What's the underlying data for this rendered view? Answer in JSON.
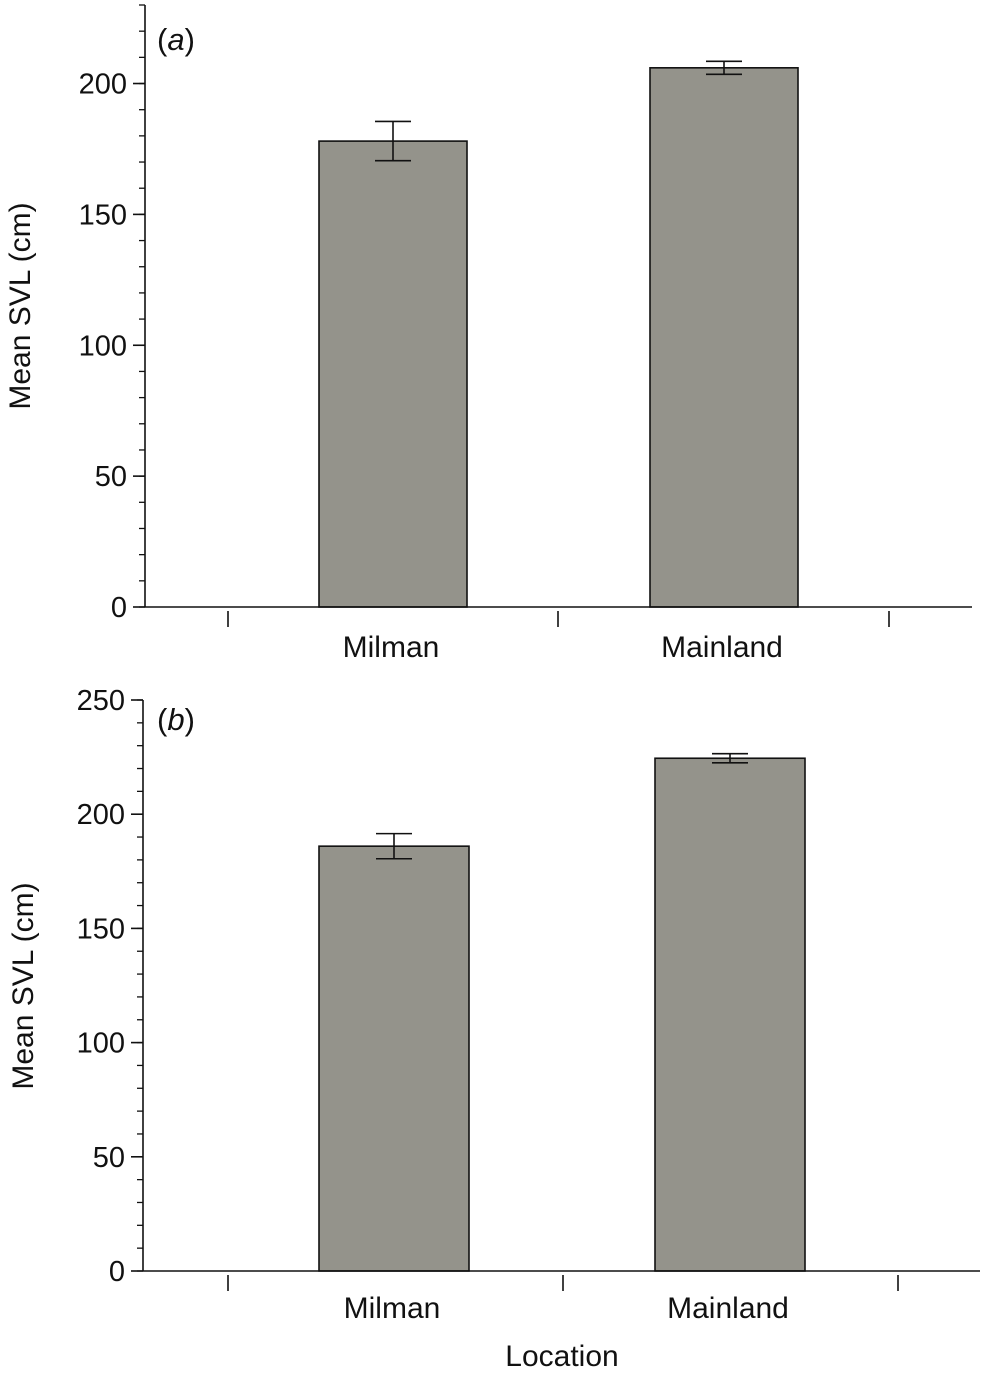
{
  "figure": {
    "xlabel": "Location",
    "colors": {
      "bar_fill": "#94938b",
      "stroke": "#111111",
      "background": "#ffffff"
    }
  },
  "chart_data": [
    {
      "type": "bar",
      "panel_label": "(a)",
      "panel_letter": "a",
      "categories": [
        "Milman",
        "Mainland"
      ],
      "values": [
        178,
        206
      ],
      "error": [
        7.5,
        2.5
      ],
      "ylabel": "Mean SVL (cm)",
      "xlabel": "",
      "ylim": [
        0,
        230
      ],
      "yticks": [
        0,
        50,
        100,
        150,
        200
      ],
      "minor_step": 10,
      "grid": false
    },
    {
      "type": "bar",
      "panel_label": "(b)",
      "panel_letter": "b",
      "categories": [
        "Milman",
        "Mainland"
      ],
      "values": [
        186,
        224.5
      ],
      "error": [
        5.5,
        2.0
      ],
      "ylabel": "Mean SVL (cm)",
      "xlabel": "Location",
      "ylim": [
        0,
        250
      ],
      "yticks": [
        0,
        50,
        100,
        150,
        200,
        250
      ],
      "minor_step": 10,
      "grid": false
    }
  ]
}
